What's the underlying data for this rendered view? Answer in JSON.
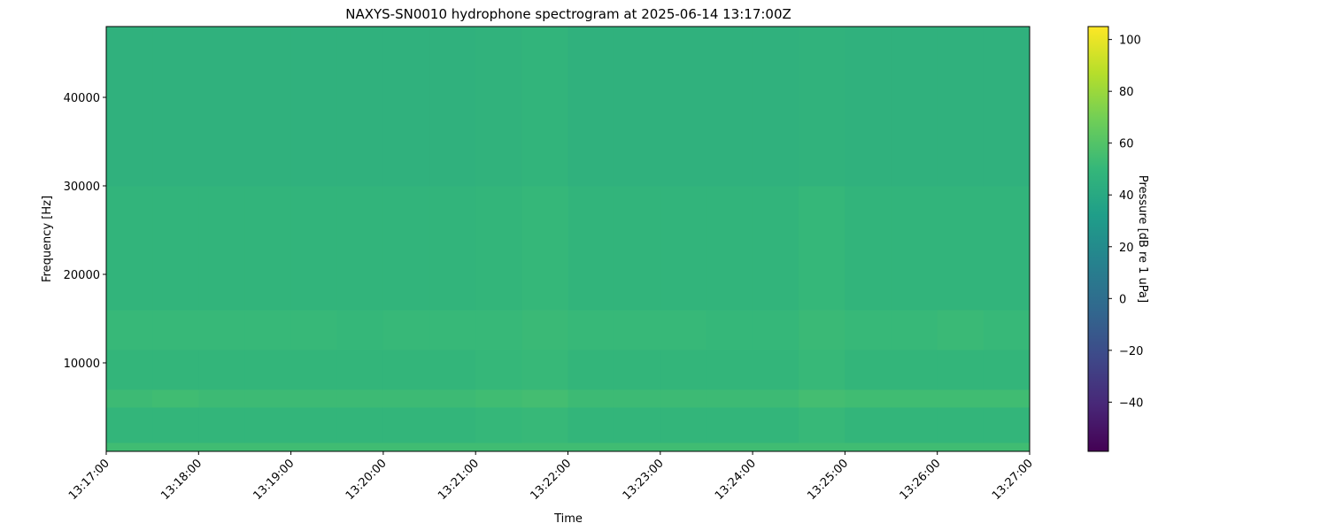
{
  "chart_data": {
    "type": "spectrogram",
    "title": "NAXYS-SN0010 hydrophone spectrogram at 2025-06-14 13:17:00Z",
    "x_label": "Time",
    "y_label": "Frequency [Hz]",
    "colorbar_label": "Pressure [dB re 1 uPa]",
    "colormap": "viridis",
    "xlim": [
      "13:17:00",
      "13:27:00"
    ],
    "xticks": [
      "13:17:00",
      "13:18:00",
      "13:19:00",
      "13:20:00",
      "13:21:00",
      "13:22:00",
      "13:23:00",
      "13:24:00",
      "13:25:00",
      "13:26:00",
      "13:27:00"
    ],
    "ylim": [
      0,
      48000
    ],
    "yticks": [
      10000,
      20000,
      30000,
      40000
    ],
    "clim": [
      -59,
      105
    ],
    "cticks": [
      {
        "value": -40,
        "label": "−40"
      },
      {
        "value": -20,
        "label": "−20"
      },
      0,
      20,
      40,
      60,
      80,
      100
    ],
    "time_edges": [
      "13:17:00",
      "13:17:30",
      "13:18:00",
      "13:18:30",
      "13:19:00",
      "13:19:30",
      "13:20:00",
      "13:20:30",
      "13:21:00",
      "13:21:30",
      "13:22:00",
      "13:22:30",
      "13:23:00",
      "13:23:30",
      "13:24:00",
      "13:24:30",
      "13:25:00",
      "13:25:30",
      "13:26:00",
      "13:26:30",
      "13:27:00"
    ],
    "frequency_edges": [
      0,
      1000,
      5000,
      7000,
      11500,
      16000,
      30000,
      48000
    ],
    "values": [
      [
        54,
        54,
        54,
        54,
        54,
        54,
        54,
        54,
        54,
        54,
        54,
        54,
        54,
        54,
        54,
        54,
        54,
        54,
        54,
        54
      ],
      [
        49,
        49,
        49,
        49,
        49,
        49,
        49,
        49,
        50,
        51,
        49,
        49,
        49,
        49,
        49,
        51,
        49,
        49,
        49,
        49
      ],
      [
        53,
        54,
        53,
        53,
        53,
        53,
        53,
        53,
        54,
        55,
        53,
        53,
        53,
        53,
        53,
        55,
        54,
        54,
        54,
        54
      ],
      [
        49,
        49,
        49,
        49,
        49,
        49,
        49,
        49,
        50,
        51,
        49,
        49,
        49,
        49,
        49,
        51,
        49,
        49,
        49,
        49
      ],
      [
        51,
        51,
        51,
        51,
        51,
        50,
        51,
        51,
        51,
        52,
        51,
        51,
        51,
        50,
        50,
        52,
        51,
        51,
        52,
        51
      ],
      [
        48,
        48,
        48,
        48,
        48,
        48,
        48,
        48,
        49,
        50,
        48,
        48,
        48,
        48,
        48,
        50,
        48,
        48,
        48,
        48
      ],
      [
        46,
        46,
        46,
        46,
        46,
        46,
        46,
        46,
        47,
        48,
        46,
        46,
        46,
        46,
        46,
        47,
        46,
        46,
        46,
        46
      ]
    ]
  }
}
